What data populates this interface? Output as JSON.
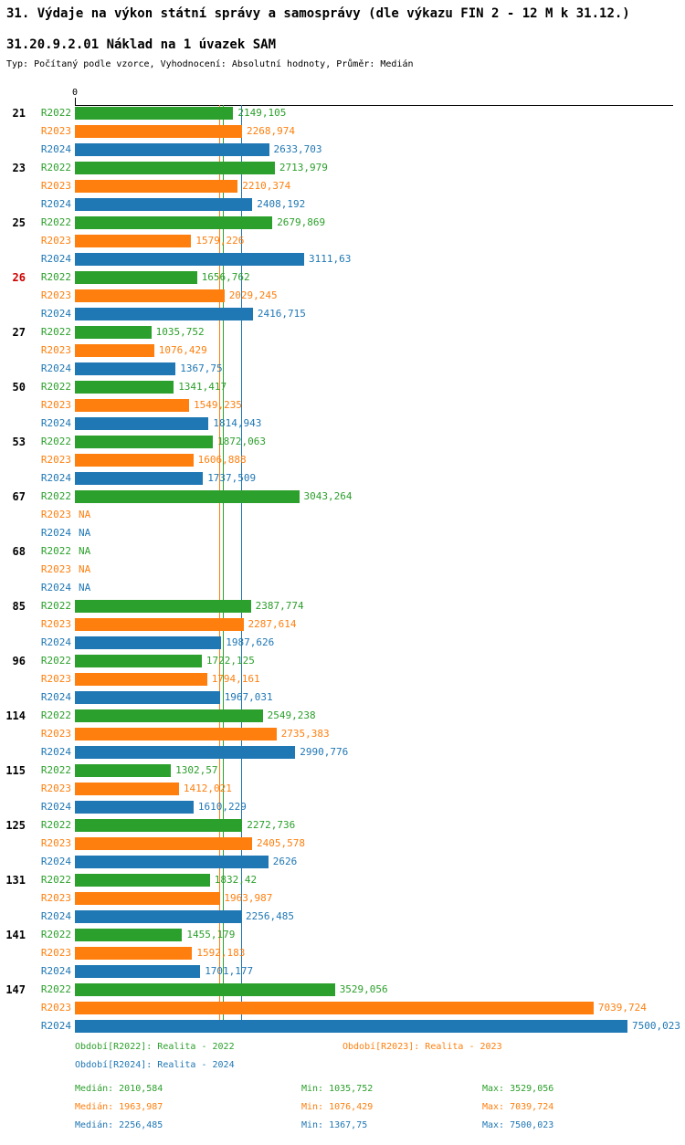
{
  "title": "31. Výdaje na výkon státní správy a samosprávy (dle výkazu FIN 2 - 12 M k 31.12.)",
  "subtitle": "31.20.9.2.01 Náklad na 1 úvazek SAM",
  "meta": "Typ: Počítaný podle vzorce, Vyhodnocení: Absolutní hodnoty, Průměr: Medián",
  "colors": {
    "series": {
      "R2022": "#2ca02c",
      "R2023": "#ff7f0e",
      "R2024": "#1f77b4"
    },
    "highlight_category": "#cc0000",
    "text": "#000000"
  },
  "chart_data": {
    "type": "bar",
    "orientation": "horizontal",
    "x_axis_origin_label": "0",
    "xlim": [
      0,
      7500.023
    ],
    "grid": false,
    "legend_position": "bottom",
    "series": [
      "R2022",
      "R2023",
      "R2024"
    ],
    "medians": {
      "R2022": 2010.584,
      "R2023": 1963.987,
      "R2024": 2256.485
    },
    "na_label": "NA",
    "groups": [
      {
        "category": "21",
        "highlight": false,
        "values": [
          2149.105,
          2268.974,
          2633.703
        ],
        "labels": [
          "2149,105",
          "2268,974",
          "2633,703"
        ]
      },
      {
        "category": "23",
        "highlight": false,
        "values": [
          2713.979,
          2210.374,
          2408.192
        ],
        "labels": [
          "2713,979",
          "2210,374",
          "2408,192"
        ]
      },
      {
        "category": "25",
        "highlight": false,
        "values": [
          2679.869,
          1579.226,
          3111.63
        ],
        "labels": [
          "2679,869",
          "1579,226",
          "3111,63"
        ]
      },
      {
        "category": "26",
        "highlight": true,
        "values": [
          1656.762,
          2029.245,
          2416.715
        ],
        "labels": [
          "1656,762",
          "2029,245",
          "2416,715"
        ]
      },
      {
        "category": "27",
        "highlight": false,
        "values": [
          1035.752,
          1076.429,
          1367.75
        ],
        "labels": [
          "1035,752",
          "1076,429",
          "1367,75"
        ]
      },
      {
        "category": "50",
        "highlight": false,
        "values": [
          1341.417,
          1549.235,
          1814.943
        ],
        "labels": [
          "1341,417",
          "1549,235",
          "1814,943"
        ]
      },
      {
        "category": "53",
        "highlight": false,
        "values": [
          1872.063,
          1606.888,
          1737.509
        ],
        "labels": [
          "1872,063",
          "1606,888",
          "1737,509"
        ]
      },
      {
        "category": "67",
        "highlight": false,
        "values": [
          3043.264,
          null,
          null
        ],
        "labels": [
          "3043,264",
          "NA",
          "NA"
        ]
      },
      {
        "category": "68",
        "highlight": false,
        "values": [
          null,
          null,
          null
        ],
        "labels": [
          "NA",
          "NA",
          "NA"
        ]
      },
      {
        "category": "85",
        "highlight": false,
        "values": [
          2387.774,
          2287.614,
          1987.626
        ],
        "labels": [
          "2387,774",
          "2287,614",
          "1987,626"
        ]
      },
      {
        "category": "96",
        "highlight": false,
        "values": [
          1722.125,
          1794.161,
          1967.031
        ],
        "labels": [
          "1722,125",
          "1794,161",
          "1967,031"
        ]
      },
      {
        "category": "114",
        "highlight": false,
        "values": [
          2549.238,
          2735.383,
          2990.776
        ],
        "labels": [
          "2549,238",
          "2735,383",
          "2990,776"
        ]
      },
      {
        "category": "115",
        "highlight": false,
        "values": [
          1302.57,
          1412.021,
          1610.229
        ],
        "labels": [
          "1302,57",
          "1412,021",
          "1610,229"
        ]
      },
      {
        "category": "125",
        "highlight": false,
        "values": [
          2272.736,
          2405.578,
          2626
        ],
        "labels": [
          "2272,736",
          "2405,578",
          "2626"
        ]
      },
      {
        "category": "131",
        "highlight": false,
        "values": [
          1832.42,
          1963.987,
          2256.485
        ],
        "labels": [
          "1832,42",
          "1963,987",
          "2256,485"
        ]
      },
      {
        "category": "141",
        "highlight": false,
        "values": [
          1455.179,
          1592.183,
          1701.177
        ],
        "labels": [
          "1455,179",
          "1592,183",
          "1701,177"
        ]
      },
      {
        "category": "147",
        "highlight": false,
        "values": [
          3529.056,
          7039.724,
          7500.023
        ],
        "labels": [
          "3529,056",
          "7039,724",
          "7500,023"
        ]
      }
    ]
  },
  "legend": [
    {
      "series": "R2022",
      "label": "Období[R2022]: Realita - 2022"
    },
    {
      "series": "R2023",
      "label": "Období[R2023]: Realita - 2023"
    },
    {
      "series": "R2024",
      "label": "Období[R2024]: Realita - 2024"
    }
  ],
  "stats": [
    {
      "series": "R2022",
      "median": "Medián: 2010,584",
      "min": "Min: 1035,752",
      "max": "Max: 3529,056"
    },
    {
      "series": "R2023",
      "median": "Medián: 1963,987",
      "min": "Min: 1076,429",
      "max": "Max: 7039,724"
    },
    {
      "series": "R2024",
      "median": "Medián: 2256,485",
      "min": "Min: 1367,75",
      "max": "Max: 7500,023"
    }
  ]
}
